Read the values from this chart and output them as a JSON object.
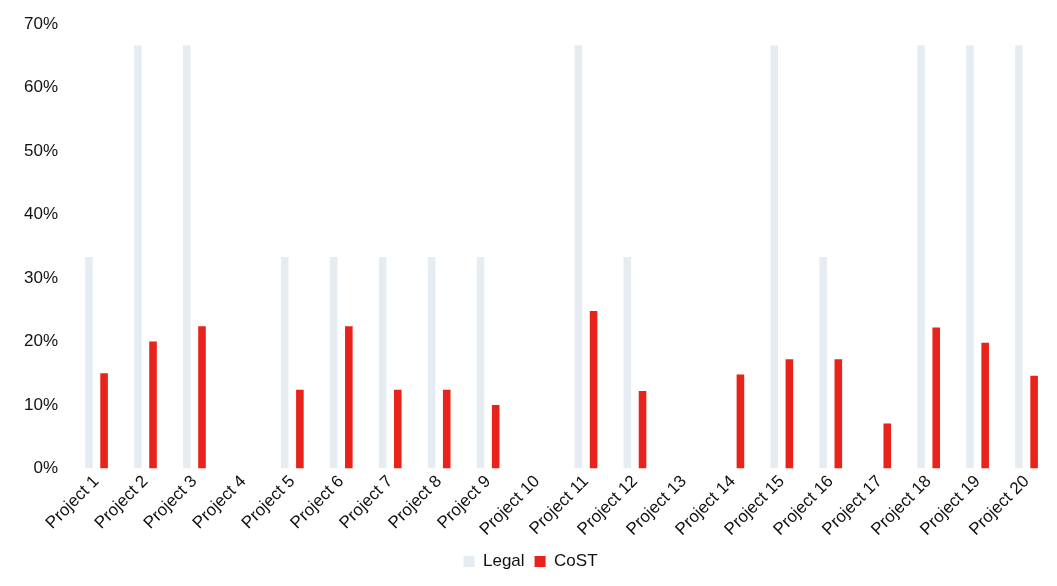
{
  "chart_data": {
    "type": "bar",
    "categories": [
      "Project 1",
      "Project 2",
      "Project 3",
      "Project 4",
      "Project 5",
      "Project 6",
      "Project 7",
      "Project 8",
      "Project 9",
      "Project 10",
      "Project 11",
      "Project 12",
      "Project 13",
      "Project 14",
      "Project 15",
      "Project 16",
      "Project 17",
      "Project 18",
      "Project 19",
      "Project 20"
    ],
    "series": [
      {
        "name": "Legal",
        "color": "#e6edf2",
        "values": [
          33.3,
          66.7,
          66.7,
          0,
          33.3,
          33.3,
          33.3,
          33.3,
          33.3,
          0,
          66.7,
          33.3,
          0,
          0,
          66.7,
          33.3,
          0,
          66.7,
          66.7,
          66.7
        ]
      },
      {
        "name": "CoST",
        "color": "#e8231b",
        "values": [
          15,
          20,
          22.4,
          0,
          12.4,
          22.4,
          12.4,
          12.4,
          10,
          0,
          24.8,
          12.2,
          0,
          14.8,
          17.2,
          17.2,
          7.1,
          22.2,
          19.8,
          14.6
        ]
      }
    ],
    "ylim": [
      0,
      70
    ],
    "yticks": [
      {
        "value": 0,
        "label": "0%"
      },
      {
        "value": 10,
        "label": "10%"
      },
      {
        "value": 20,
        "label": "20%"
      },
      {
        "value": 30,
        "label": "30%"
      },
      {
        "value": 40,
        "label": "40%"
      },
      {
        "value": 50,
        "label": "50%"
      },
      {
        "value": 60,
        "label": "60%"
      },
      {
        "value": 70,
        "label": "70%"
      }
    ],
    "grid": false,
    "legend": "bottom"
  }
}
